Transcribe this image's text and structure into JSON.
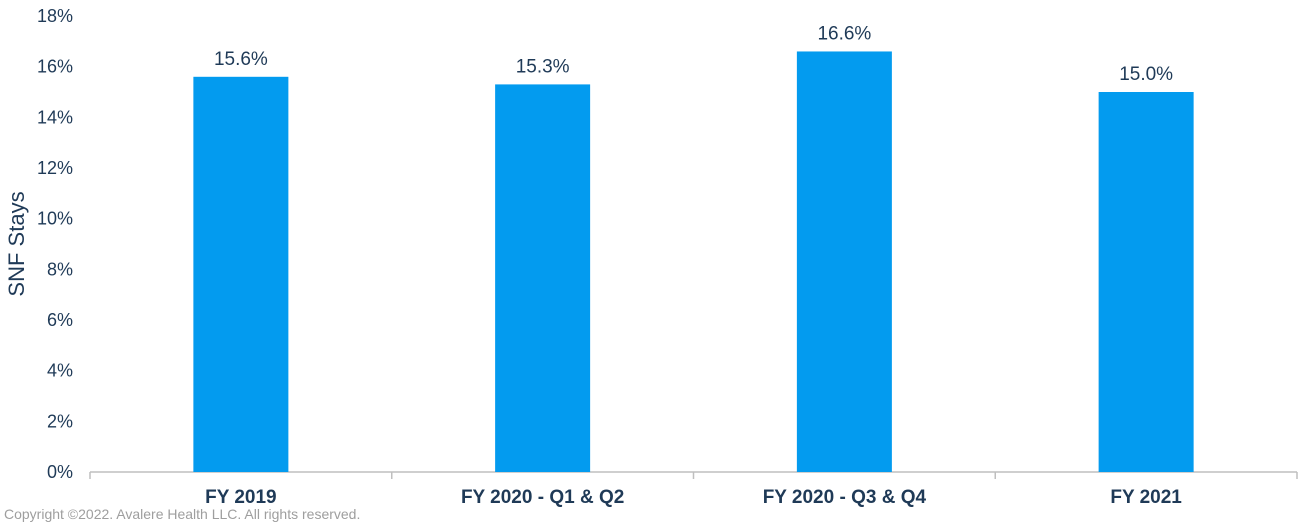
{
  "chart_data": {
    "type": "bar",
    "categories": [
      "FY 2019",
      "FY 2020 - Q1 & Q2",
      "FY 2020 - Q3 & Q4",
      "FY 2021"
    ],
    "values": [
      15.6,
      15.3,
      16.6,
      15.0
    ],
    "data_labels": [
      "15.6%",
      "15.3%",
      "16.6%",
      "15.0%"
    ],
    "ylabel": "SNF Stays",
    "xlabel": "",
    "ylim": [
      0,
      18
    ],
    "yticks": [
      0,
      2,
      4,
      6,
      8,
      10,
      12,
      14,
      16,
      18
    ],
    "ytick_labels": [
      "0%",
      "2%",
      "4%",
      "6%",
      "8%",
      "10%",
      "12%",
      "14%",
      "16%",
      "18%"
    ],
    "grid": false,
    "legend": "none",
    "bar_color": "#039BEF",
    "text_color": "#1F3A57"
  },
  "footer": {
    "copyright": "Copyright ©2022. Avalere Health LLC. All rights reserved."
  }
}
